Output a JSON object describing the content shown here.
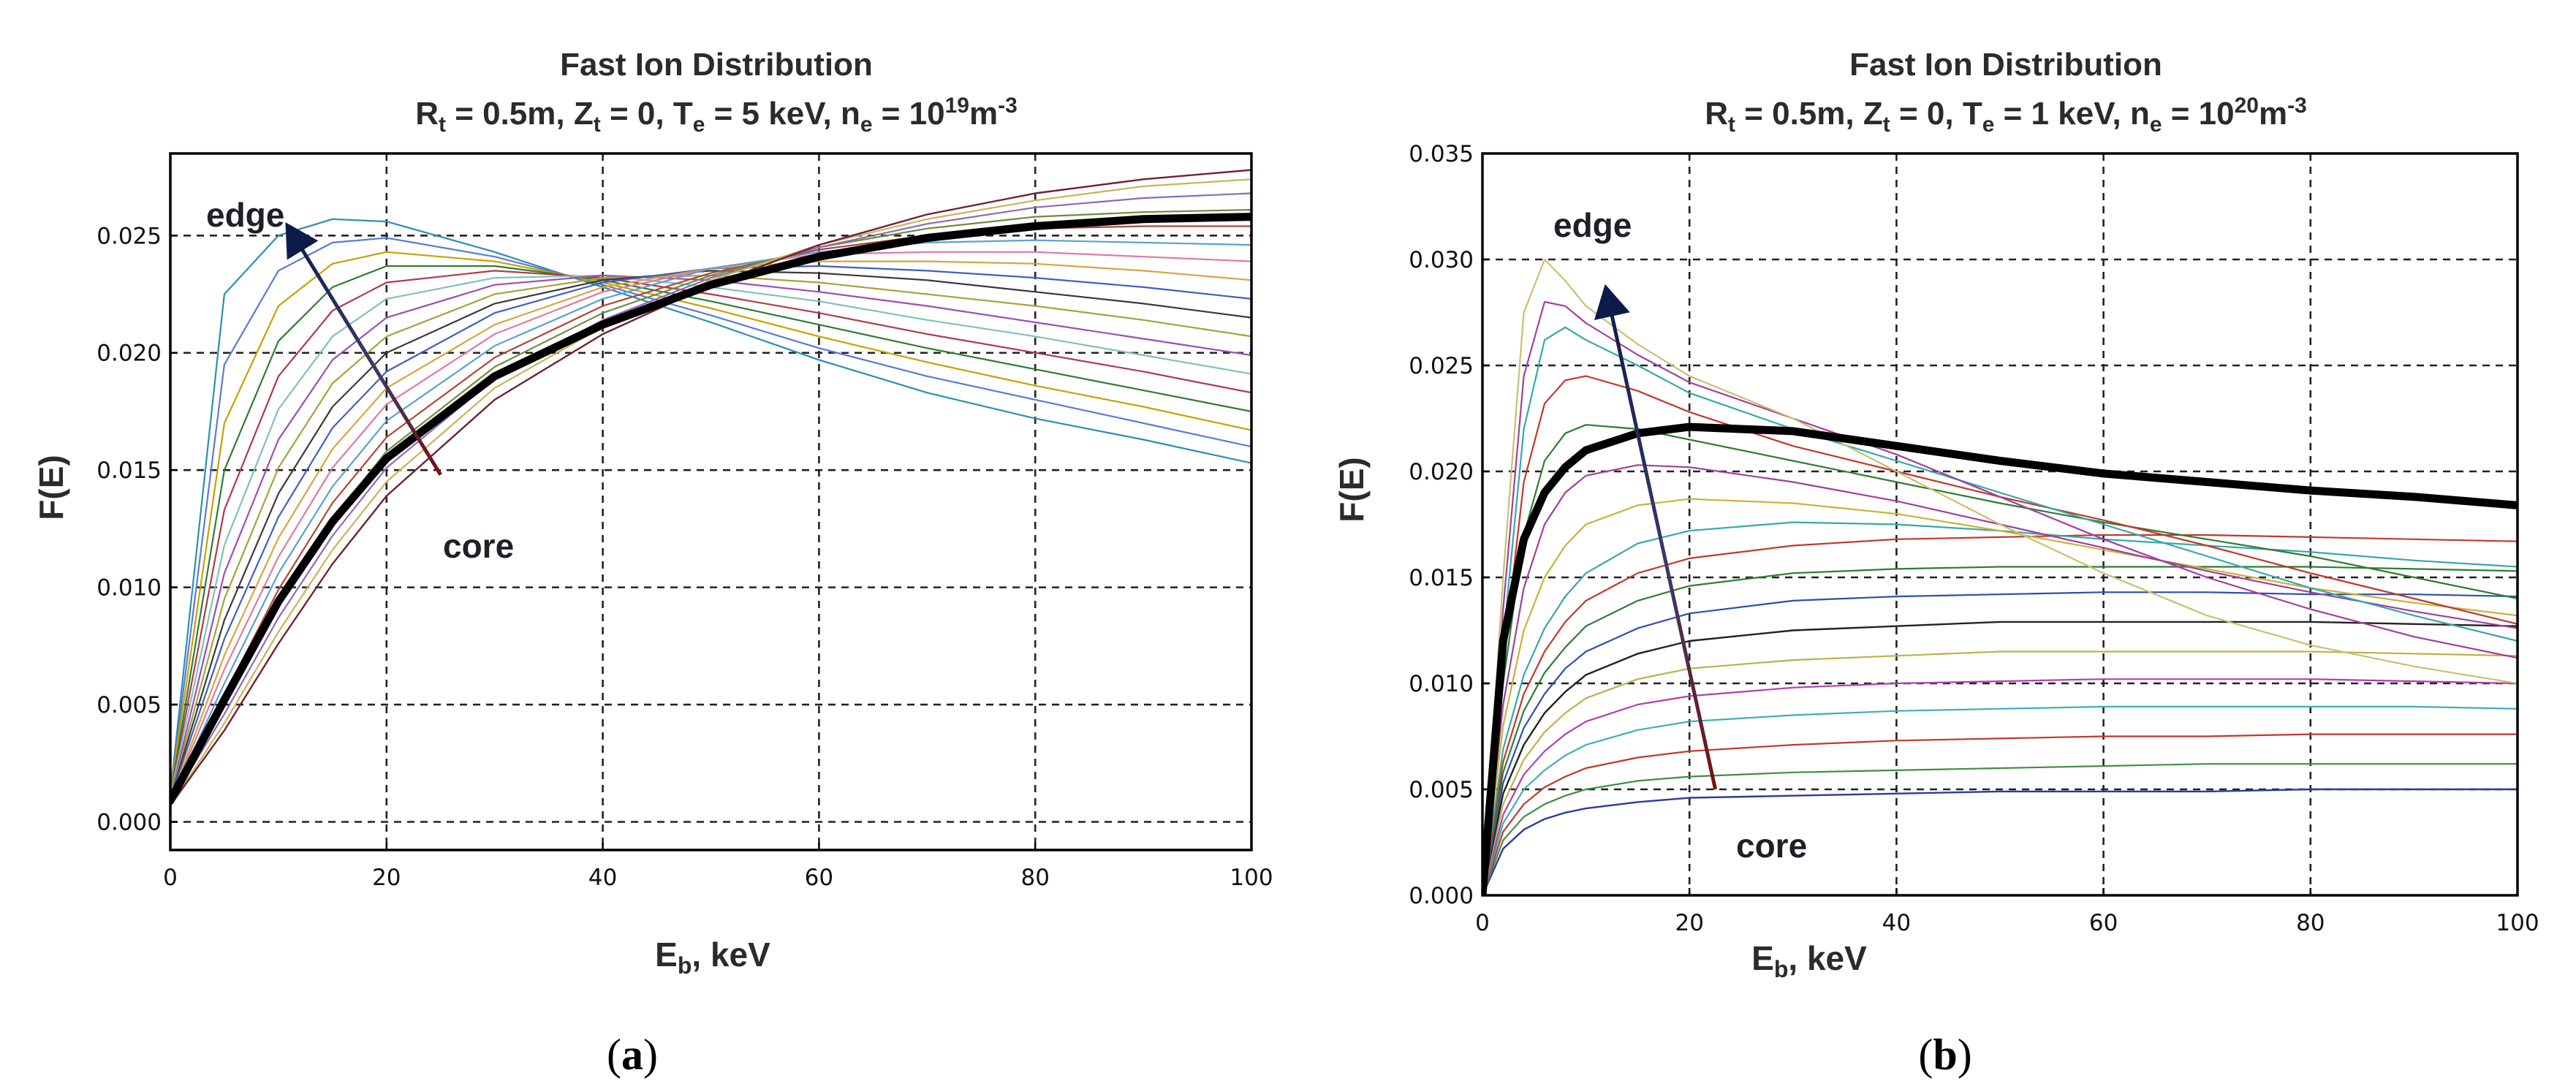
{
  "chart_data": [
    {
      "type": "line",
      "panel_label": "a",
      "title": "Fast Ion Distribution",
      "subtitle_parts": {
        "r_main": "R",
        "r_sub": "t",
        "r_val": " = 0.5m, ",
        "z_main": "Z",
        "z_sub": "t",
        "z_val": " = 0, ",
        "t_main": "T",
        "t_sub": "e",
        "t_val": " = 5 keV,  ",
        "n_main": "n",
        "n_sub": "e",
        "n_val": " = 10",
        "n_exp": "19",
        "n_unit": "m",
        "n_unit_exp": "-3"
      },
      "xlabel_main": "E",
      "xlabel_sub": "b",
      "xlabel_rest": ", keV",
      "ylabel": "F(E)",
      "xlim": [
        0,
        100
      ],
      "ylim": [
        -0.0012,
        0.0285
      ],
      "xticks": [
        0,
        20,
        40,
        60,
        80,
        100
      ],
      "xtick_labels": [
        "0",
        "20",
        "40",
        "60",
        "80",
        "100"
      ],
      "yticks": [
        0.0,
        0.005,
        0.01,
        0.015,
        0.02,
        0.025
      ],
      "ytick_labels": [
        "0.000",
        "0.005",
        "0.010",
        "0.015",
        "0.020",
        "0.025"
      ],
      "grid": true,
      "annotations": {
        "edge": "edge",
        "core": "core"
      },
      "arrow": {
        "from": [
          25,
          0.0148
        ],
        "to": [
          11,
          0.0253
        ]
      },
      "x": [
        0,
        5,
        10,
        15,
        20,
        30,
        40,
        50,
        60,
        70,
        80,
        90,
        100
      ],
      "series": [
        {
          "values": [
            0.0012,
            0.0225,
            0.025,
            0.0257,
            0.0256,
            0.0243,
            0.0228,
            0.0213,
            0.0197,
            0.0183,
            0.0172,
            0.0163,
            0.0153
          ],
          "color": "#2a8fb3",
          "width": 2.2
        },
        {
          "values": [
            0.0012,
            0.0195,
            0.0235,
            0.0247,
            0.0249,
            0.0241,
            0.0229,
            0.0216,
            0.0202,
            0.019,
            0.018,
            0.017,
            0.016
          ],
          "color": "#5b7bd5",
          "width": 2.2
        },
        {
          "values": [
            0.0012,
            0.017,
            0.022,
            0.0238,
            0.0243,
            0.0239,
            0.023,
            0.0219,
            0.0207,
            0.0196,
            0.0186,
            0.0177,
            0.0167
          ],
          "color": "#c9a100",
          "width": 2.2
        },
        {
          "values": [
            0.0011,
            0.015,
            0.0205,
            0.0228,
            0.0237,
            0.0237,
            0.0231,
            0.0222,
            0.0212,
            0.0202,
            0.0193,
            0.0184,
            0.0175
          ],
          "color": "#2e7d32",
          "width": 2.2
        },
        {
          "values": [
            0.0011,
            0.0133,
            0.019,
            0.0218,
            0.023,
            0.0235,
            0.0232,
            0.0225,
            0.0217,
            0.0208,
            0.02,
            0.0192,
            0.0183
          ],
          "color": "#b23a48",
          "width": 2.2
        },
        {
          "values": [
            0.0011,
            0.0118,
            0.0176,
            0.0207,
            0.0223,
            0.0232,
            0.0233,
            0.0228,
            0.0222,
            0.0214,
            0.0207,
            0.0199,
            0.0191
          ],
          "color": "#7fc2b5",
          "width": 2.2
        },
        {
          "values": [
            0.001,
            0.0106,
            0.0163,
            0.0197,
            0.0215,
            0.0229,
            0.0233,
            0.0231,
            0.0226,
            0.022,
            0.0213,
            0.0206,
            0.0199
          ],
          "color": "#9b4fb5",
          "width": 2.2
        },
        {
          "values": [
            0.001,
            0.0095,
            0.0151,
            0.0187,
            0.0207,
            0.0225,
            0.0232,
            0.0233,
            0.023,
            0.0225,
            0.022,
            0.0214,
            0.0207
          ],
          "color": "#a8a23a",
          "width": 2.2
        },
        {
          "values": [
            0.001,
            0.0086,
            0.014,
            0.0177,
            0.02,
            0.0221,
            0.0231,
            0.0235,
            0.0234,
            0.0231,
            0.0226,
            0.0221,
            0.0215
          ],
          "color": "#3a3a3a",
          "width": 2.2
        },
        {
          "values": [
            0.001,
            0.0078,
            0.013,
            0.0168,
            0.0192,
            0.0217,
            0.023,
            0.0236,
            0.0237,
            0.0235,
            0.0232,
            0.0228,
            0.0223
          ],
          "color": "#3f5fbf",
          "width": 2.2
        },
        {
          "values": [
            0.0009,
            0.0071,
            0.0121,
            0.0159,
            0.0185,
            0.0212,
            0.0228,
            0.0236,
            0.0239,
            0.0239,
            0.0238,
            0.0235,
            0.0231
          ],
          "color": "#d9a441",
          "width": 2.2
        },
        {
          "values": [
            0.0009,
            0.0065,
            0.0113,
            0.0151,
            0.0178,
            0.0208,
            0.0226,
            0.0236,
            0.0242,
            0.0243,
            0.0243,
            0.0241,
            0.0239
          ],
          "color": "#e07aa0",
          "width": 2.2
        },
        {
          "values": [
            0.0009,
            0.0059,
            0.0106,
            0.0143,
            0.0171,
            0.0203,
            0.0223,
            0.0236,
            0.0243,
            0.0247,
            0.0248,
            0.0247,
            0.0246
          ],
          "color": "#5aa0d0",
          "width": 2.2
        },
        {
          "values": [
            0.0008,
            0.0054,
            0.0099,
            0.0136,
            0.0164,
            0.0198,
            0.022,
            0.0234,
            0.0244,
            0.025,
            0.0253,
            0.0254,
            0.0254
          ],
          "color": "#b0473b",
          "width": 2.2
        },
        {
          "values": [
            0.0008,
            0.005,
            0.0093,
            0.0129,
            0.0158,
            0.0194,
            0.0217,
            0.0233,
            0.0245,
            0.0253,
            0.0258,
            0.026,
            0.0261
          ],
          "color": "#6a8f3a",
          "width": 2.2
        },
        {
          "values": [
            0.0008,
            0.0046,
            0.0087,
            0.0122,
            0.0151,
            0.0189,
            0.0214,
            0.0232,
            0.0245,
            0.0255,
            0.0262,
            0.0266,
            0.0268
          ],
          "color": "#8e6ab8",
          "width": 2.2
        },
        {
          "values": [
            0.0007,
            0.0042,
            0.0081,
            0.0116,
            0.0145,
            0.0185,
            0.0211,
            0.0231,
            0.0246,
            0.0257,
            0.0265,
            0.0271,
            0.0274
          ],
          "color": "#c9b458",
          "width": 2.2
        },
        {
          "values": [
            0.0007,
            0.0039,
            0.0076,
            0.011,
            0.0139,
            0.018,
            0.0208,
            0.0229,
            0.0246,
            0.0259,
            0.0268,
            0.0274,
            0.0278
          ],
          "color": "#6e2233",
          "width": 2.4
        },
        {
          "values": [
            0.0009,
            0.0052,
            0.0094,
            0.0128,
            0.0155,
            0.019,
            0.0212,
            0.0229,
            0.0241,
            0.0249,
            0.0254,
            0.0257,
            0.0258
          ],
          "color": "#000000",
          "width": 11,
          "bold": true
        }
      ]
    },
    {
      "type": "line",
      "panel_label": "b",
      "title": "Fast Ion Distribution",
      "subtitle_parts": {
        "r_main": "R",
        "r_sub": "t",
        "r_val": " = 0.5m, ",
        "z_main": "Z",
        "z_sub": "t",
        "z_val": " = 0, ",
        "t_main": "T",
        "t_sub": "e",
        "t_val": " = 1 keV,  ",
        "n_main": "n",
        "n_sub": "e",
        "n_val": " = 10",
        "n_exp": "20",
        "n_unit": "m",
        "n_unit_exp": "-3"
      },
      "xlabel_main": "E",
      "xlabel_sub": "b",
      "xlabel_rest": ", keV",
      "ylabel": "F(E)",
      "xlim": [
        0,
        100
      ],
      "ylim": [
        0,
        0.035
      ],
      "xticks": [
        0,
        20,
        40,
        60,
        80,
        100
      ],
      "xtick_labels": [
        "0",
        "20",
        "40",
        "60",
        "80",
        "100"
      ],
      "yticks": [
        0.0,
        0.005,
        0.01,
        0.015,
        0.02,
        0.025,
        0.03,
        0.035
      ],
      "ytick_labels": [
        "0.000",
        "0.005",
        "0.010",
        "0.015",
        "0.020",
        "0.025",
        "0.030",
        "0.035"
      ],
      "grid": true,
      "annotations": {
        "edge": "edge",
        "core": "core"
      },
      "arrow": {
        "from": [
          22.5,
          0.005
        ],
        "to": [
          12,
          0.0285
        ]
      },
      "x": [
        0,
        2,
        4,
        6,
        8,
        10,
        15,
        20,
        30,
        40,
        50,
        60,
        70,
        80,
        90,
        100
      ],
      "series": [
        {
          "values": [
            0.0,
            0.0022,
            0.0031,
            0.0036,
            0.0039,
            0.0041,
            0.0044,
            0.0046,
            0.0047,
            0.0048,
            0.0049,
            0.0049,
            0.0049,
            0.005,
            0.005,
            0.005
          ],
          "color": "#2a3a9f",
          "width": 2.4
        },
        {
          "values": [
            0.0,
            0.0026,
            0.0037,
            0.0043,
            0.0047,
            0.005,
            0.0054,
            0.0056,
            0.0058,
            0.0059,
            0.006,
            0.0061,
            0.0062,
            0.0062,
            0.0062,
            0.0062
          ],
          "color": "#3f8f3f",
          "width": 2.2
        },
        {
          "values": [
            0.0,
            0.003,
            0.0043,
            0.0051,
            0.0056,
            0.006,
            0.0065,
            0.0068,
            0.0071,
            0.0073,
            0.0074,
            0.0075,
            0.0075,
            0.0076,
            0.0076,
            0.0076
          ],
          "color": "#c0392b",
          "width": 2.2
        },
        {
          "values": [
            0.0,
            0.0034,
            0.005,
            0.0059,
            0.0066,
            0.0071,
            0.0078,
            0.0082,
            0.0085,
            0.0087,
            0.0088,
            0.0089,
            0.0089,
            0.0089,
            0.0089,
            0.0088
          ],
          "color": "#3fb0b0",
          "width": 2.2
        },
        {
          "values": [
            0.0,
            0.0038,
            0.0057,
            0.0068,
            0.0076,
            0.0082,
            0.009,
            0.0094,
            0.0098,
            0.01,
            0.0101,
            0.0102,
            0.0102,
            0.0102,
            0.0101,
            0.01
          ],
          "color": "#b03fb0",
          "width": 2.2
        },
        {
          "values": [
            0.0,
            0.0043,
            0.0064,
            0.0077,
            0.0086,
            0.0093,
            0.0102,
            0.0107,
            0.0111,
            0.0113,
            0.0115,
            0.0115,
            0.0115,
            0.0115,
            0.0114,
            0.0113
          ],
          "color": "#bdb24a",
          "width": 2.2
        },
        {
          "values": [
            0.0,
            0.0048,
            0.0071,
            0.0086,
            0.0096,
            0.0104,
            0.0114,
            0.012,
            0.0125,
            0.0127,
            0.0129,
            0.0129,
            0.0129,
            0.0129,
            0.0128,
            0.0127
          ],
          "color": "#222222",
          "width": 2.4
        },
        {
          "values": [
            0.0,
            0.0053,
            0.0079,
            0.0095,
            0.0107,
            0.0115,
            0.0126,
            0.0133,
            0.0139,
            0.0141,
            0.0142,
            0.0143,
            0.0143,
            0.0142,
            0.0142,
            0.0141
          ],
          "color": "#2f4fa8",
          "width": 2.2
        },
        {
          "values": [
            0.0,
            0.0058,
            0.0087,
            0.0105,
            0.0117,
            0.0127,
            0.0139,
            0.0146,
            0.0152,
            0.0154,
            0.0155,
            0.0155,
            0.0155,
            0.0155,
            0.0154,
            0.0153
          ],
          "color": "#2e7d32",
          "width": 2.2
        },
        {
          "values": [
            0.0,
            0.0063,
            0.0095,
            0.0115,
            0.0129,
            0.0139,
            0.0152,
            0.0159,
            0.0165,
            0.0168,
            0.0169,
            0.017,
            0.017,
            0.0169,
            0.0168,
            0.0167
          ],
          "color": "#c0392b",
          "width": 2.2
        },
        {
          "values": [
            0.0,
            0.0069,
            0.0104,
            0.0126,
            0.0141,
            0.0152,
            0.0166,
            0.0172,
            0.0176,
            0.0175,
            0.0172,
            0.0168,
            0.0165,
            0.0162,
            0.0158,
            0.0155
          ],
          "color": "#36a8a8",
          "width": 2.2
        },
        {
          "values": [
            0.0,
            0.008,
            0.0125,
            0.015,
            0.0165,
            0.0175,
            0.0184,
            0.0187,
            0.0185,
            0.018,
            0.0172,
            0.0163,
            0.0154,
            0.0145,
            0.0138,
            0.0132
          ],
          "color": "#c7b33a",
          "width": 2.2
        },
        {
          "values": [
            0.0,
            0.009,
            0.0145,
            0.0175,
            0.019,
            0.0198,
            0.0203,
            0.0202,
            0.0195,
            0.0186,
            0.0175,
            0.0164,
            0.0153,
            0.0143,
            0.0134,
            0.0126
          ],
          "color": "#a03fa0",
          "width": 2.2
        },
        {
          "values": [
            0.0,
            0.01,
            0.017,
            0.0205,
            0.0218,
            0.0222,
            0.022,
            0.0215,
            0.0205,
            0.0195,
            0.0185,
            0.0176,
            0.0168,
            0.016,
            0.015,
            0.014
          ],
          "color": "#2e7d32",
          "width": 2.2
        },
        {
          "values": [
            0.0,
            0.011,
            0.0195,
            0.0232,
            0.0243,
            0.0245,
            0.0238,
            0.0228,
            0.0212,
            0.02,
            0.0188,
            0.0177,
            0.0165,
            0.0152,
            0.014,
            0.0128
          ],
          "color": "#c0392b",
          "width": 2.2
        },
        {
          "values": [
            0.0,
            0.012,
            0.022,
            0.0262,
            0.0268,
            0.0262,
            0.025,
            0.0237,
            0.022,
            0.0205,
            0.019,
            0.0175,
            0.016,
            0.0145,
            0.0132,
            0.012
          ],
          "color": "#36a8a8",
          "width": 2.2
        },
        {
          "values": [
            0.0,
            0.0135,
            0.0245,
            0.028,
            0.0278,
            0.027,
            0.0255,
            0.0242,
            0.0225,
            0.0208,
            0.0188,
            0.0168,
            0.015,
            0.0135,
            0.0122,
            0.0112
          ],
          "color": "#a03fa0",
          "width": 2.2
        },
        {
          "values": [
            0.0,
            0.015,
            0.0275,
            0.03,
            0.029,
            0.0278,
            0.026,
            0.0245,
            0.0225,
            0.02,
            0.0175,
            0.0152,
            0.0132,
            0.0118,
            0.0108,
            0.01
          ],
          "color": "#c9c070",
          "width": 2.2
        },
        {
          "values": [
            0.0,
            0.012,
            0.0168,
            0.019,
            0.0202,
            0.021,
            0.0218,
            0.0221,
            0.0219,
            0.0212,
            0.0205,
            0.0199,
            0.0195,
            0.0191,
            0.0188,
            0.0184
          ],
          "color": "#000000",
          "width": 11,
          "bold": true
        }
      ]
    }
  ]
}
